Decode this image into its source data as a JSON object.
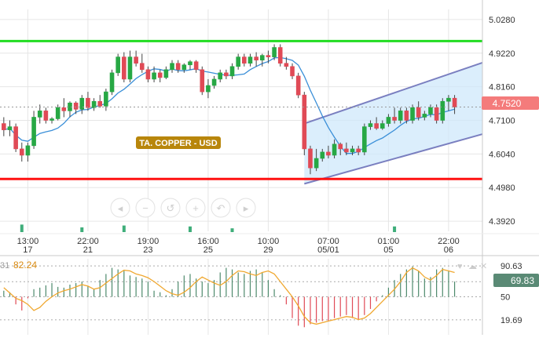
{
  "colors": {
    "up": "#27a844",
    "down": "#e04a56",
    "ma": "#3a8fd8",
    "resistance": "#22dd22",
    "support": "#ff1111",
    "channel_line": "#7a7fc0",
    "channel_fill": "#cfe8fb",
    "price_tag": "#f47b7b",
    "label_bg": "#b8860b",
    "osc_line": "#f0a830",
    "osc_tag": "#5a8a75",
    "grid": "#e6e6e6",
    "text": "#333333"
  },
  "annotations": {
    "instrument_label": "TA. COPPER - USD"
  },
  "nav_controls": [
    "scroll-left-icon",
    "zoom-out-icon",
    "reset-zoom-icon",
    "zoom-in-icon",
    "undo-icon",
    "scroll-right-icon"
  ],
  "chart_data": [
    {
      "type": "candlestick",
      "instrument": "TA. COPPER - USD",
      "ylim": [
        4.36,
        5.06
      ],
      "y_ticks": [
        "5.0280",
        "4.9220",
        "4.8160",
        "4.7100",
        "4.6040",
        "4.4980",
        "4.3920"
      ],
      "x_tick_labels": [
        {
          "time": "13:00",
          "date": "17"
        },
        {
          "time": "22:00",
          "date": "21"
        },
        {
          "time": "19:00",
          "date": "23"
        },
        {
          "time": "16:00",
          "date": "25"
        },
        {
          "time": "10:00",
          "date": "29"
        },
        {
          "time": "07:00",
          "date": "05/01"
        },
        {
          "time": "01:00",
          "date": "05"
        },
        {
          "time": "22:00",
          "date": "06"
        }
      ],
      "x_tick_index": [
        4,
        14,
        24,
        34,
        44,
        54,
        64,
        74
      ],
      "last_price": "4.7520",
      "last_price_value": 4.752,
      "resistance": 4.96,
      "support": 4.525,
      "channel": {
        "lower_start": {
          "index": 50,
          "value": 4.51
        },
        "lower_end": {
          "index": 80,
          "value": 4.71
        },
        "upper_start": {
          "index": 50,
          "value": 4.7
        },
        "upper_end": {
          "index": 80,
          "value": 4.945
        }
      },
      "ohlc": [
        [
          4.7,
          4.72,
          4.66,
          4.68
        ],
        [
          4.68,
          4.71,
          4.66,
          4.69
        ],
        [
          4.69,
          4.7,
          4.61,
          4.62
        ],
        [
          4.62,
          4.64,
          4.58,
          4.6
        ],
        [
          4.6,
          4.64,
          4.58,
          4.63
        ],
        [
          4.63,
          4.74,
          4.62,
          4.72
        ],
        [
          4.72,
          4.76,
          4.7,
          4.74
        ],
        [
          4.74,
          4.75,
          4.7,
          4.71
        ],
        [
          4.71,
          4.72,
          4.7,
          4.715
        ],
        [
          4.715,
          4.76,
          4.71,
          4.75
        ],
        [
          4.75,
          4.78,
          4.72,
          4.74
        ],
        [
          4.74,
          4.77,
          4.72,
          4.765
        ],
        [
          4.765,
          4.77,
          4.73,
          4.745
        ],
        [
          4.745,
          4.79,
          4.73,
          4.78
        ],
        [
          4.78,
          4.8,
          4.74,
          4.75
        ],
        [
          4.75,
          4.78,
          4.74,
          4.77
        ],
        [
          4.77,
          4.79,
          4.75,
          4.755
        ],
        [
          4.755,
          4.81,
          4.74,
          4.8
        ],
        [
          4.8,
          4.87,
          4.79,
          4.86
        ],
        [
          4.86,
          4.92,
          4.85,
          4.91
        ],
        [
          4.91,
          4.925,
          4.83,
          4.84
        ],
        [
          4.84,
          4.93,
          4.83,
          4.91
        ],
        [
          4.91,
          4.93,
          4.88,
          4.89
        ],
        [
          4.89,
          4.92,
          4.86,
          4.87
        ],
        [
          4.87,
          4.88,
          4.83,
          4.84
        ],
        [
          4.84,
          4.88,
          4.83,
          4.86
        ],
        [
          4.86,
          4.87,
          4.83,
          4.845
        ],
        [
          4.845,
          4.88,
          4.84,
          4.87
        ],
        [
          4.87,
          4.9,
          4.86,
          4.89
        ],
        [
          4.89,
          4.9,
          4.86,
          4.87
        ],
        [
          4.87,
          4.89,
          4.86,
          4.885
        ],
        [
          4.885,
          4.9,
          4.87,
          4.895
        ],
        [
          4.895,
          4.9,
          4.86,
          4.87
        ],
        [
          4.87,
          4.88,
          4.79,
          4.8
        ],
        [
          4.8,
          4.84,
          4.78,
          4.82
        ],
        [
          4.82,
          4.85,
          4.81,
          4.84
        ],
        [
          4.84,
          4.87,
          4.83,
          4.86
        ],
        [
          4.86,
          4.87,
          4.84,
          4.85
        ],
        [
          4.85,
          4.89,
          4.84,
          4.88
        ],
        [
          4.88,
          4.92,
          4.87,
          4.91
        ],
        [
          4.91,
          4.92,
          4.88,
          4.89
        ],
        [
          4.89,
          4.92,
          4.88,
          4.91
        ],
        [
          4.91,
          4.925,
          4.88,
          4.9
        ],
        [
          4.9,
          4.92,
          4.88,
          4.915
        ],
        [
          4.915,
          4.93,
          4.89,
          4.91
        ],
        [
          4.91,
          4.95,
          4.9,
          4.94
        ],
        [
          4.94,
          4.95,
          4.88,
          4.89
        ],
        [
          4.89,
          4.91,
          4.87,
          4.88
        ],
        [
          4.88,
          4.89,
          4.84,
          4.85
        ],
        [
          4.85,
          4.86,
          4.78,
          4.79
        ],
        [
          4.79,
          4.8,
          4.6,
          4.62
        ],
        [
          4.62,
          4.63,
          4.54,
          4.56
        ],
        [
          4.56,
          4.62,
          4.55,
          4.59
        ],
        [
          4.59,
          4.62,
          4.58,
          4.61
        ],
        [
          4.61,
          4.63,
          4.59,
          4.6
        ],
        [
          4.6,
          4.65,
          4.59,
          4.635
        ],
        [
          4.635,
          4.64,
          4.6,
          4.62
        ],
        [
          4.62,
          4.64,
          4.6,
          4.61
        ],
        [
          4.61,
          4.63,
          4.6,
          4.62
        ],
        [
          4.62,
          4.63,
          4.6,
          4.61
        ],
        [
          4.61,
          4.7,
          4.6,
          4.69
        ],
        [
          4.69,
          4.71,
          4.68,
          4.7
        ],
        [
          4.7,
          4.72,
          4.68,
          4.685
        ],
        [
          4.685,
          4.71,
          4.68,
          4.7
        ],
        [
          4.7,
          4.73,
          4.69,
          4.72
        ],
        [
          4.72,
          4.75,
          4.7,
          4.71
        ],
        [
          4.71,
          4.75,
          4.7,
          4.74
        ],
        [
          4.74,
          4.75,
          4.7,
          4.71
        ],
        [
          4.71,
          4.76,
          4.7,
          4.75
        ],
        [
          4.75,
          4.77,
          4.71,
          4.72
        ],
        [
          4.72,
          4.74,
          4.71,
          4.73
        ],
        [
          4.73,
          4.76,
          4.72,
          4.75
        ],
        [
          4.75,
          4.76,
          4.7,
          4.71
        ],
        [
          4.71,
          4.78,
          4.7,
          4.77
        ],
        [
          4.77,
          4.79,
          4.74,
          4.78
        ],
        [
          4.78,
          4.79,
          4.73,
          4.752
        ]
      ],
      "volume": [
        0,
        0,
        0,
        8,
        0,
        0,
        0,
        0,
        0,
        0,
        0,
        0,
        0,
        5,
        0,
        0,
        0,
        0,
        0,
        0,
        7,
        0,
        0,
        0,
        0,
        0,
        0,
        0,
        0,
        0,
        0,
        6,
        0,
        0,
        0,
        0,
        0,
        0,
        4,
        0,
        0,
        0,
        0,
        0,
        0,
        0,
        0,
        0,
        0,
        0,
        0,
        0,
        0,
        0,
        0,
        0,
        0,
        0,
        0,
        0,
        0,
        0,
        0,
        0,
        0,
        6,
        0,
        0,
        0,
        0,
        0,
        0,
        0,
        0,
        0,
        0
      ]
    },
    {
      "type": "oscillator",
      "header_prefix": "31",
      "current_value_label": "82.24",
      "ylim": [
        0,
        100
      ],
      "y_ticks": [
        "90.63",
        "50",
        "19.69"
      ],
      "levels": [
        90.63,
        69.83,
        50,
        19.69
      ],
      "current_tag": "69.83",
      "line": [
        62,
        55,
        48,
        45,
        40,
        32,
        36,
        44,
        50,
        55,
        58,
        60,
        63,
        66,
        64,
        60,
        62,
        68,
        74,
        80,
        85,
        84,
        80,
        78,
        75,
        70,
        64,
        58,
        54,
        52,
        56,
        62,
        70,
        76,
        72,
        68,
        65,
        70,
        78,
        84,
        83,
        80,
        78,
        82,
        84,
        80,
        70,
        60,
        50,
        38,
        24,
        16,
        14,
        16,
        18,
        20,
        22,
        24,
        23,
        20,
        22,
        28,
        36,
        44,
        52,
        60,
        70,
        82,
        88,
        84,
        76,
        72,
        78,
        86,
        84,
        82
      ],
      "bars": [
        58,
        56,
        40,
        32,
        48,
        60,
        62,
        65,
        68,
        63,
        62,
        66,
        68,
        70,
        64,
        60,
        72,
        80,
        88,
        86,
        84,
        78,
        76,
        74,
        70,
        58,
        56,
        52,
        60,
        70,
        78,
        80,
        74,
        70,
        68,
        72,
        82,
        88,
        86,
        82,
        80,
        84,
        86,
        82,
        72,
        60,
        52,
        40,
        22,
        12,
        10,
        14,
        16,
        18,
        18,
        22,
        24,
        26,
        22,
        20,
        26,
        34,
        44,
        52,
        62,
        72,
        80,
        86,
        90,
        84,
        74,
        76,
        86,
        88,
        84,
        70
      ]
    }
  ]
}
